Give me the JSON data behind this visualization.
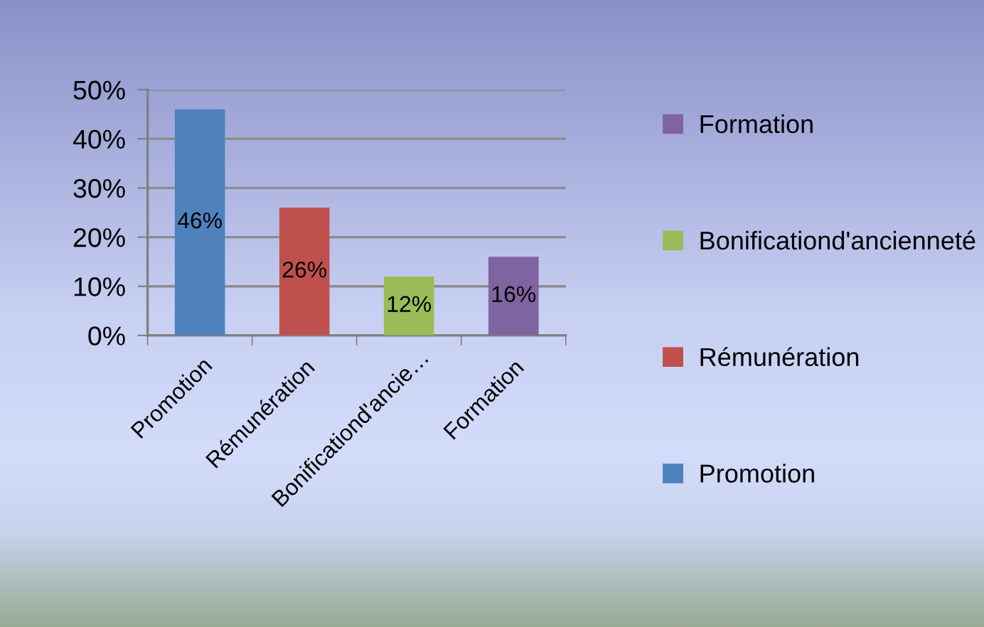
{
  "chart_data": {
    "type": "bar",
    "categories": [
      "Promotion",
      "Rémunération",
      "Bonificationd'ancie…",
      "Formation"
    ],
    "series": [
      {
        "name": "Formation",
        "color": "#8064a2",
        "values": [
          null,
          null,
          null,
          16
        ],
        "value_labels": [
          null,
          null,
          null,
          "16%"
        ]
      },
      {
        "name": "Bonificationd'ancienneté",
        "color": "#9bbb59",
        "values": [
          null,
          null,
          12,
          null
        ],
        "value_labels": [
          null,
          null,
          "12%",
          null
        ]
      },
      {
        "name": "Rémunération",
        "color": "#c0504d",
        "values": [
          null,
          26,
          null,
          null
        ],
        "value_labels": [
          null,
          "26%",
          null,
          null
        ]
      },
      {
        "name": "Promotion",
        "color": "#4f81bd",
        "values": [
          46,
          null,
          null,
          null
        ],
        "value_labels": [
          "46%",
          null,
          null,
          null
        ]
      }
    ],
    "ylim": [
      0,
      50
    ],
    "yticks": [
      {
        "value": 0,
        "label": "0%"
      },
      {
        "value": 10,
        "label": "10%"
      },
      {
        "value": 20,
        "label": "20%"
      },
      {
        "value": 30,
        "label": "30%"
      },
      {
        "value": 40,
        "label": "40%"
      },
      {
        "value": 50,
        "label": "50%"
      }
    ],
    "grid": "y",
    "legend": "right"
  }
}
